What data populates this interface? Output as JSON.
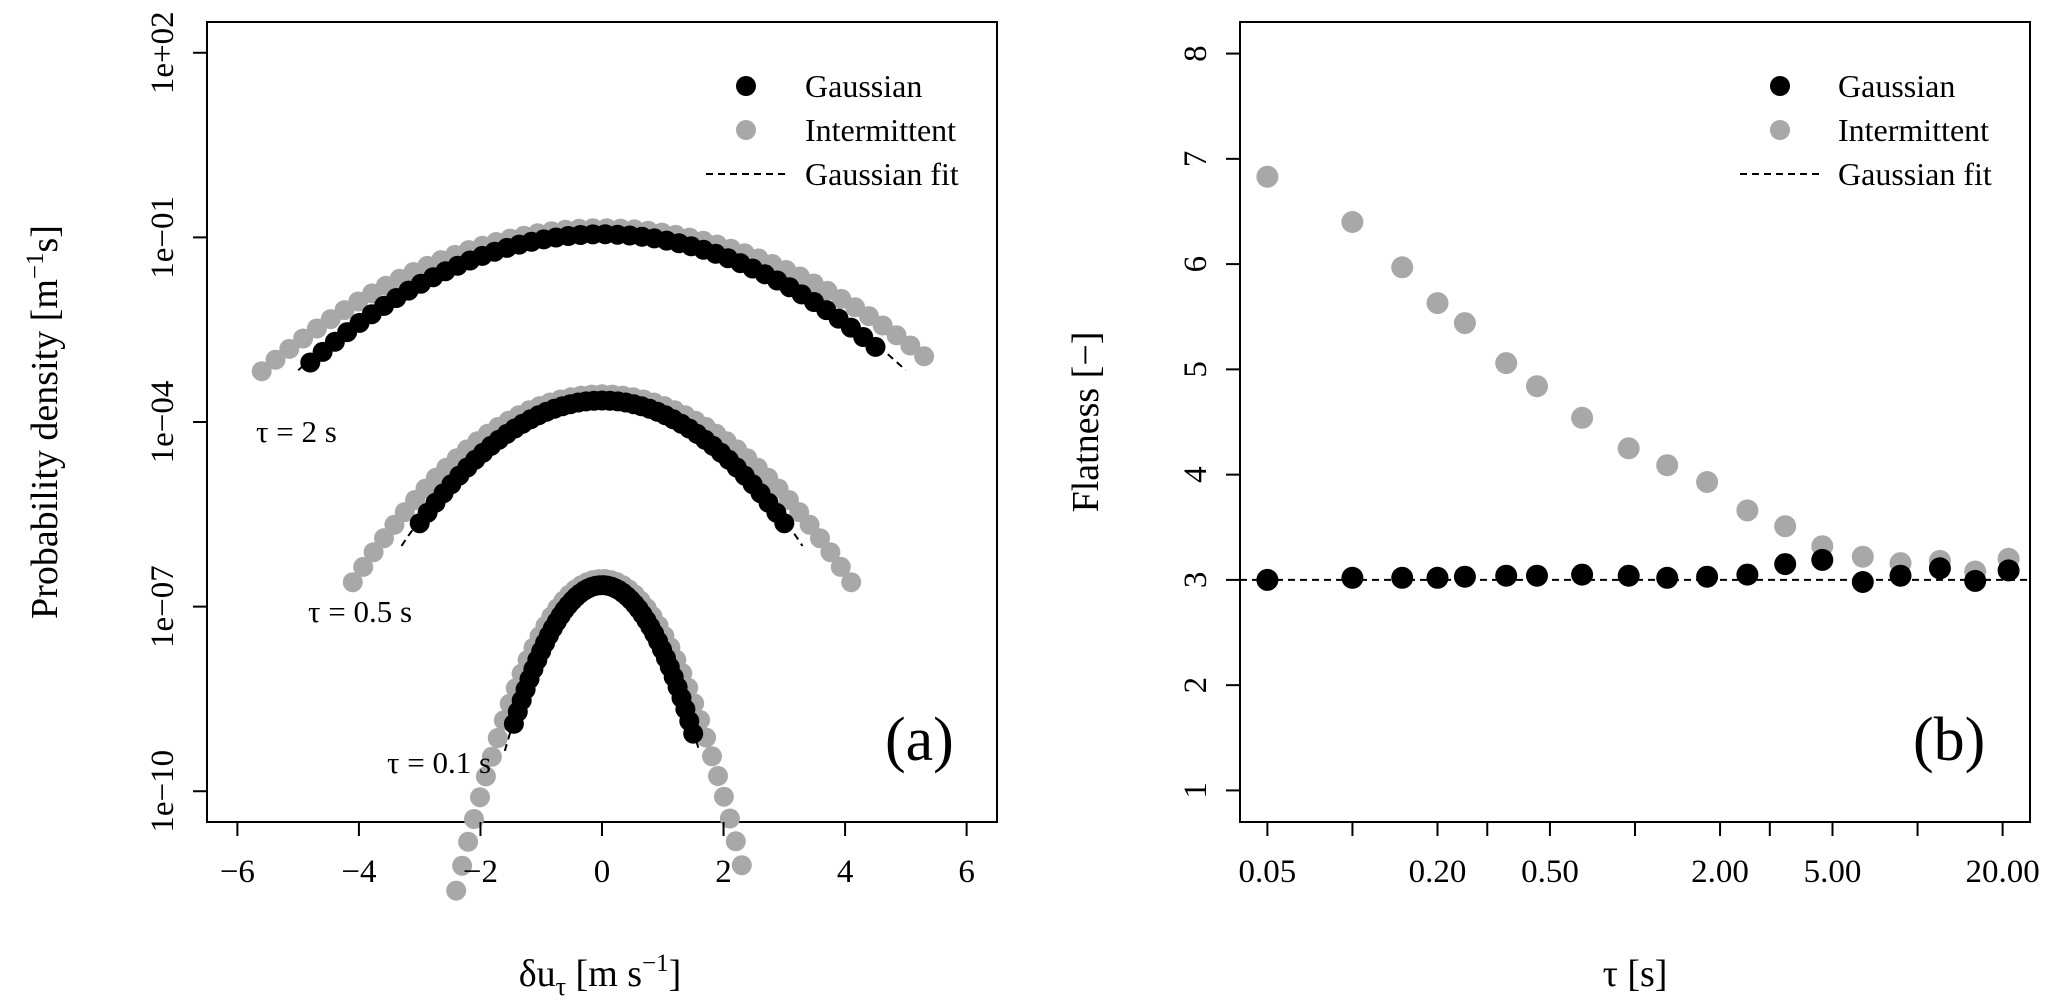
{
  "chart_data": [
    {
      "type": "scatter",
      "panel_label": "(a)",
      "xlabel_main": "δu",
      "xlabel_sub": "τ",
      "xlabel_unit_open": " [m s",
      "xlabel_unit_sup": "−1",
      "xlabel_unit_close": "]",
      "ylabel_main": "Probability density [m",
      "ylabel_sup": "−1",
      "ylabel_tail": "s]",
      "xlim": [
        -6.5,
        6.5
      ],
      "y_log": true,
      "ylim_log10": [
        -10.5,
        2.5
      ],
      "x_ticks": [
        -6,
        -4,
        -2,
        0,
        2,
        4,
        6
      ],
      "x_tick_labels": [
        "−6",
        "−4",
        "−2",
        "0",
        "2",
        "4",
        "6"
      ],
      "y_ticks_log10": [
        2,
        -1,
        -4,
        -7,
        -10
      ],
      "y_tick_labels": [
        "1e+02",
        "1e−01",
        "1e−04",
        "1e−07",
        "1e−10"
      ],
      "legend": {
        "position": "top-right",
        "entries": [
          "Gaussian",
          "Intermittent",
          "Gaussian fit"
        ]
      },
      "annotations": [
        {
          "text": "τ = 2 s",
          "at": [
            -5.6,
            -4.0
          ]
        },
        {
          "text": "τ = 0.5 s",
          "at": [
            -3.8,
            -7.0
          ]
        },
        {
          "text": "τ = 0.1 s",
          "at": [
            -2.0,
            -9.8
          ]
        }
      ],
      "curves": [
        {
          "tau": "2 s",
          "sigma": 1.55,
          "peak_log10": -0.9,
          "offset": 0,
          "fit_range": [
            -5.0,
            5.0
          ],
          "gaussian_range": [
            -4.8,
            4.5
          ],
          "intermittent_range": [
            -5.6,
            5.3
          ]
        },
        {
          "tau": "0.5 s",
          "sigma": 0.99,
          "peak_log10": -3.6,
          "offset": 0,
          "fit_range": [
            -3.3,
            3.3
          ],
          "gaussian_range": [
            -3.0,
            3.0
          ],
          "intermittent_range": [
            -4.1,
            4.1
          ]
        },
        {
          "tau": "0.1 s",
          "sigma": 0.45,
          "peak_log10": -6.6,
          "offset": 0,
          "fit_range": [
            -1.6,
            1.6
          ],
          "gaussian_range": [
            -1.45,
            1.5
          ],
          "intermittent_range": [
            -2.4,
            2.3
          ]
        }
      ]
    },
    {
      "type": "scatter",
      "panel_label": "(b)",
      "xlabel": "τ [s]",
      "ylabel": "Flatness [−]",
      "x_log": true,
      "xlim": [
        0.04,
        25
      ],
      "ylim": [
        0.7,
        8.3
      ],
      "x_ticks": [
        0.05,
        0.1,
        0.2,
        0.3,
        0.5,
        1,
        2,
        3,
        5,
        10,
        20
      ],
      "x_tick_labels": [
        "0.05",
        "",
        "0.20",
        "",
        "0.50",
        "",
        "2.00",
        "",
        "5.00",
        "",
        "20.00"
      ],
      "y_ticks": [
        1,
        2,
        3,
        4,
        5,
        6,
        7,
        8
      ],
      "y_tick_labels": [
        "1",
        "2",
        "3",
        "4",
        "5",
        "6",
        "7",
        "8"
      ],
      "legend": {
        "position": "top-right",
        "entries": [
          "Gaussian",
          "Intermittent",
          "Gaussian fit"
        ]
      },
      "reference_line": {
        "y": 3.0,
        "style": "dashed",
        "label": "Gaussian fit"
      },
      "series": [
        {
          "name": "Gaussian",
          "color": "#000000",
          "x": [
            0.05,
            0.1,
            0.15,
            0.2,
            0.25,
            0.35,
            0.45,
            0.65,
            0.95,
            1.3,
            1.8,
            2.5,
            3.4,
            4.6,
            6.4,
            8.7,
            12,
            16,
            21
          ],
          "y": [
            3.0,
            3.02,
            3.02,
            3.02,
            3.03,
            3.04,
            3.04,
            3.05,
            3.04,
            3.02,
            3.03,
            3.05,
            3.15,
            3.19,
            2.98,
            3.04,
            3.11,
            2.99,
            3.09
          ]
        },
        {
          "name": "Intermittent",
          "color": "#a8a8a8",
          "x": [
            0.05,
            0.1,
            0.15,
            0.2,
            0.25,
            0.35,
            0.45,
            0.65,
            0.95,
            1.3,
            1.8,
            2.5,
            3.4,
            4.6,
            6.4,
            8.7,
            12,
            16,
            21
          ],
          "y": [
            6.83,
            6.4,
            5.97,
            5.63,
            5.44,
            5.06,
            4.84,
            4.54,
            4.25,
            4.09,
            3.93,
            3.66,
            3.51,
            3.32,
            3.22,
            3.16,
            3.18,
            3.08,
            3.2
          ]
        }
      ]
    }
  ]
}
